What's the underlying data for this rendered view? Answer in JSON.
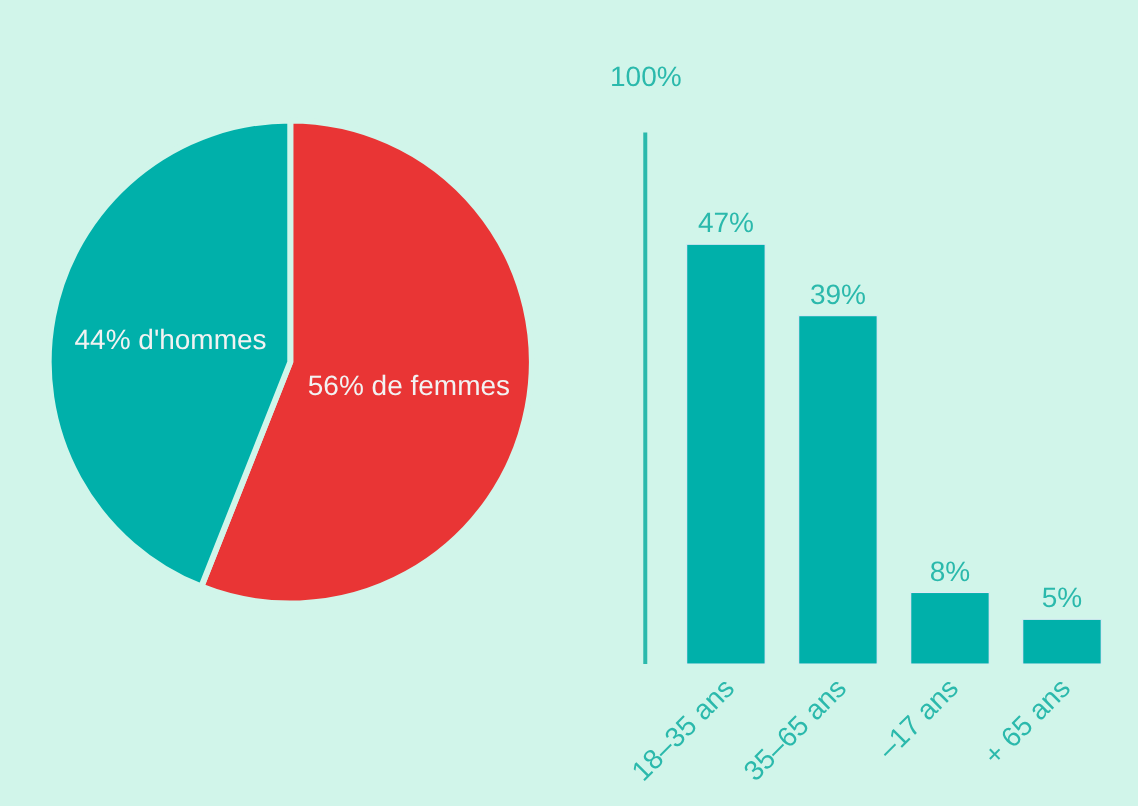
{
  "chart_data": [
    {
      "type": "pie",
      "categories": [
        "56% de femmes",
        "44% d'hommes"
      ],
      "values": [
        56,
        44
      ],
      "colors": [
        "#e93535",
        "#00b0aa"
      ]
    },
    {
      "type": "bar",
      "categories": [
        "18–35 ans",
        "35–65 ans",
        "–17 ans",
        "+ 65 ans"
      ],
      "values": [
        47,
        39,
        8,
        5
      ],
      "value_labels": [
        "47%",
        "39%",
        "8%",
        "5%"
      ],
      "color": "#00b0aa",
      "annotations": [
        "100%"
      ],
      "grid": false,
      "legend": false
    }
  ]
}
